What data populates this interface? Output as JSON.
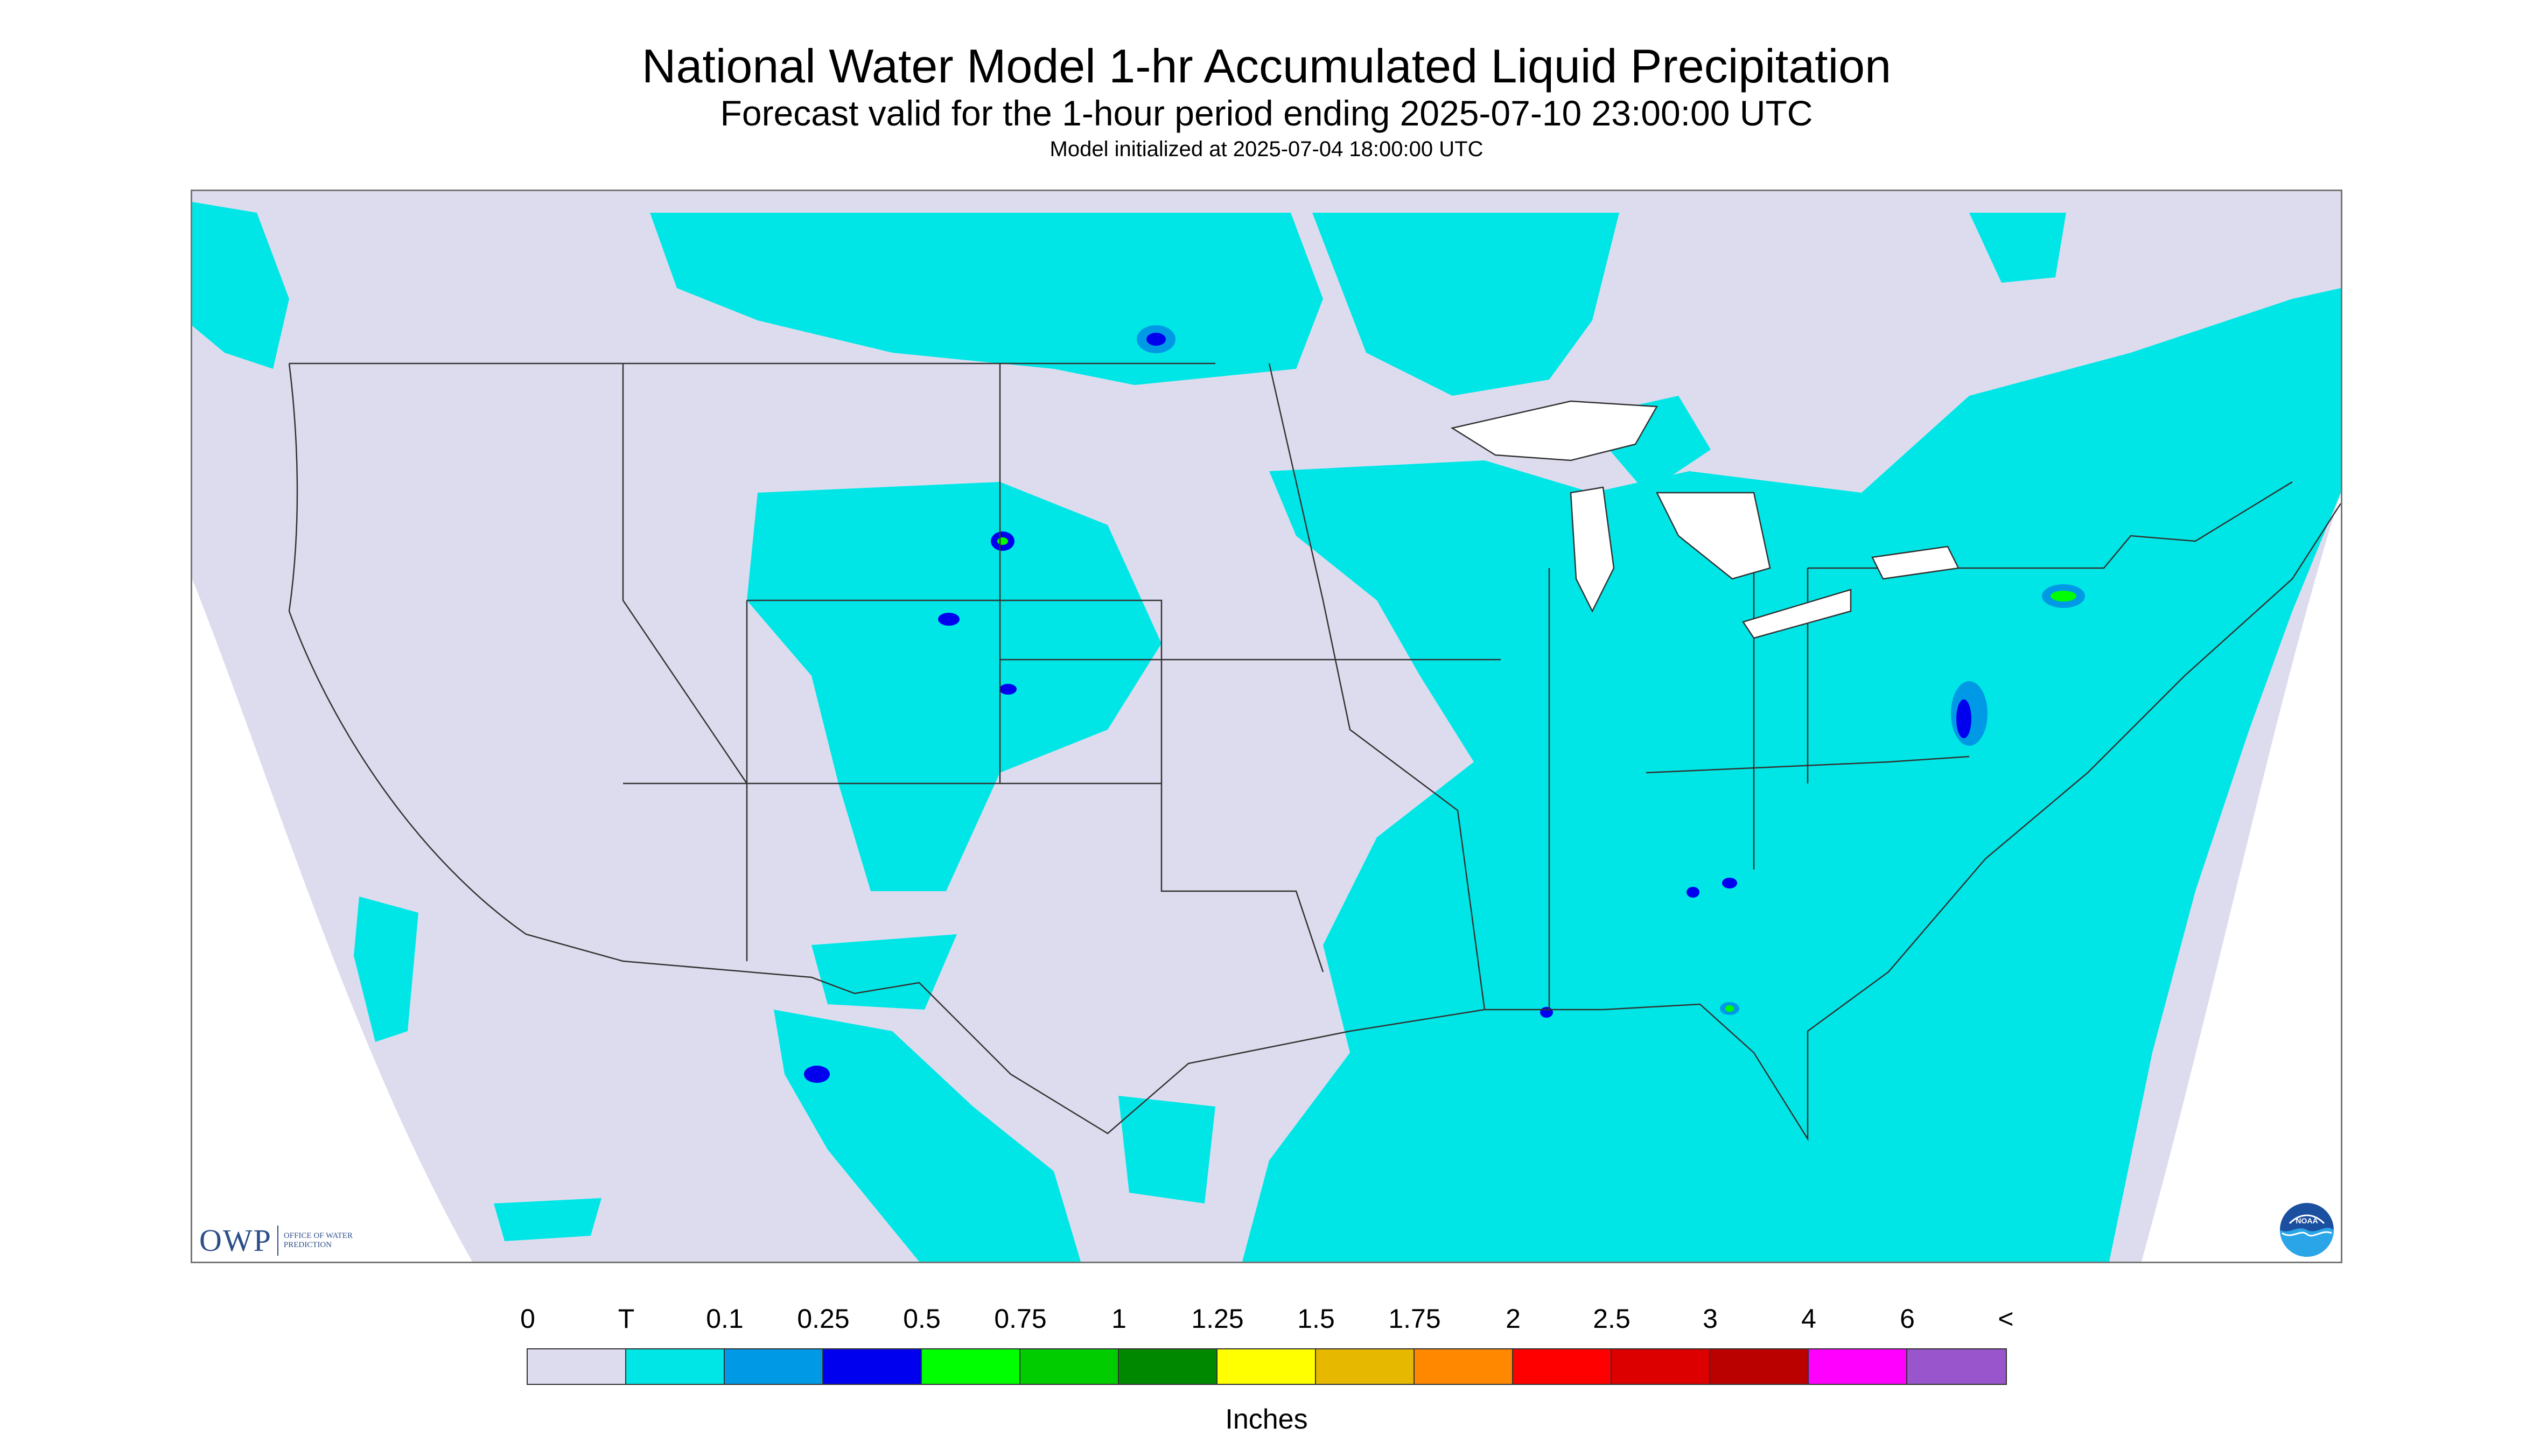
{
  "header": {
    "title": "National Water Model 1-hr Accumulated Liquid Precipitation",
    "subtitle": "Forecast valid for the 1-hour period ending 2025-07-10 23:00:00 UTC",
    "init": "Model initialized at 2025-07-04 18:00:00 UTC"
  },
  "map": {
    "region": "CONUS",
    "background_color": "#dcdcee",
    "outside_color": "#ffffff",
    "boundary_color": "#333333"
  },
  "logos": {
    "owp": {
      "name": "OWP",
      "sub": "OFFICE OF WATER PREDICTION",
      "icon": "owp-logo"
    },
    "noaa": {
      "name": "NOAA",
      "icon": "noaa-logo"
    }
  },
  "legend": {
    "labels": [
      "0",
      "T",
      "0.1",
      "0.25",
      "0.5",
      "0.75",
      "1",
      "1.25",
      "1.5",
      "1.75",
      "2",
      "2.5",
      "3",
      "4",
      "6",
      "<"
    ],
    "colors": [
      "#dcdcee",
      "#00e6e6",
      "#0099e6",
      "#0000ee",
      "#00ff00",
      "#00cc00",
      "#008800",
      "#ffff00",
      "#e6b800",
      "#ff8800",
      "#ff0000",
      "#dd0000",
      "#bb0000",
      "#ff00ff",
      "#9955cc"
    ],
    "units": "Inches"
  }
}
